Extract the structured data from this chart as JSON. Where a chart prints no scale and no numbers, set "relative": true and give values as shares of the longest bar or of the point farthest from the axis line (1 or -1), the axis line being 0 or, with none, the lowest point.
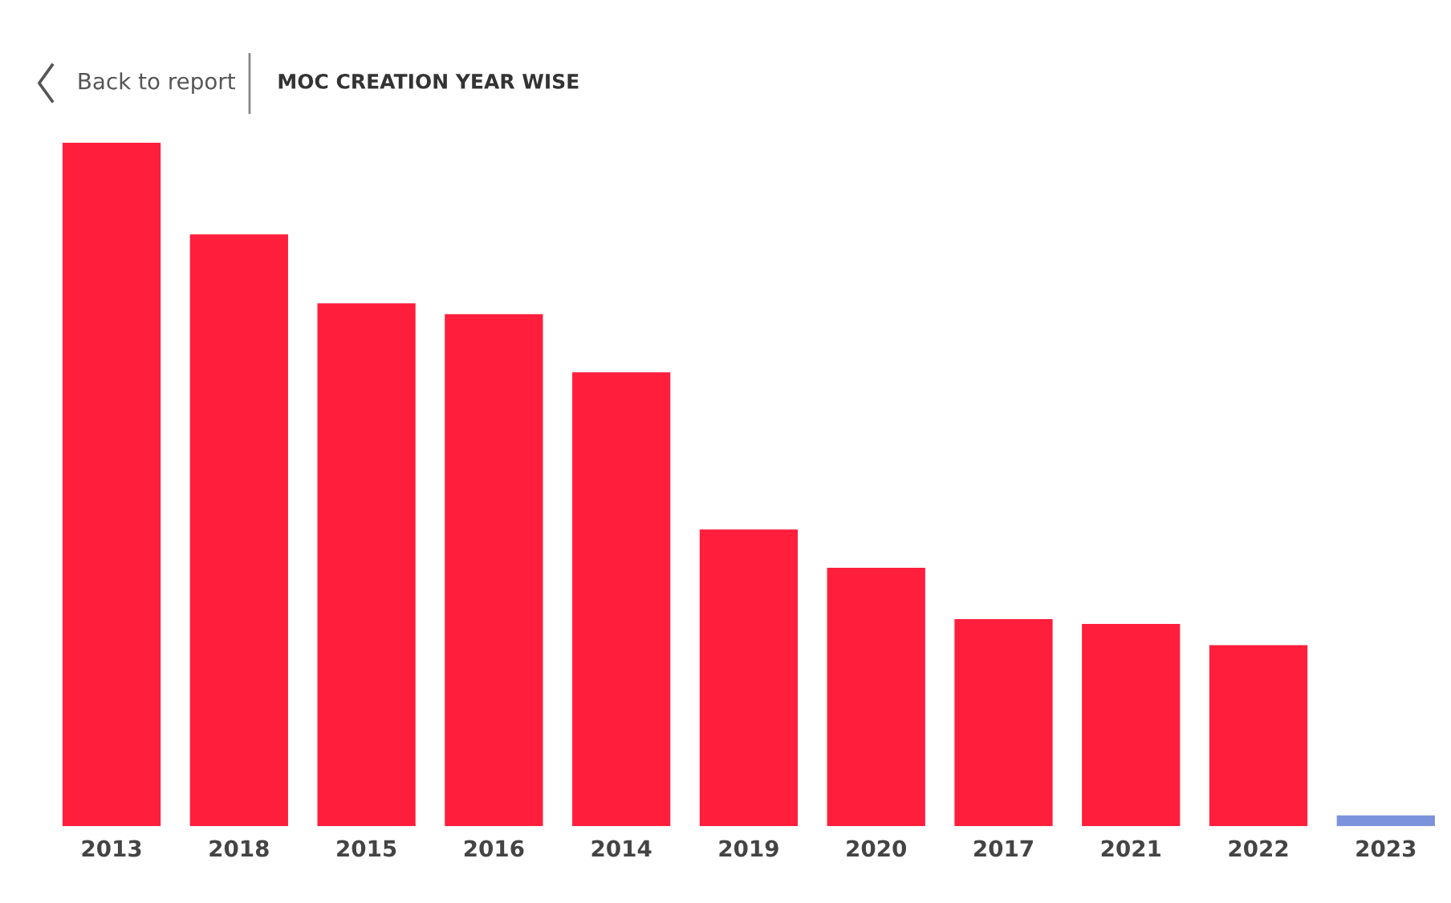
{
  "chart_data": {
    "type": "bar",
    "title": "MOC CREATION YEAR WISE",
    "relative": true,
    "annotations": [
      "Back to report"
    ],
    "categories": [
      "2013",
      "2018",
      "2015",
      "2016",
      "2014",
      "2019",
      "2020",
      "2017",
      "2021",
      "2022",
      "2023"
    ],
    "values": [
      1,
      0.866,
      0.765,
      0.749,
      0.664,
      0.434,
      0.378,
      0.303,
      0.296,
      0.265,
      0.016
    ],
    "colors": [
      "#ff1e3c",
      "#ff1e3c",
      "#ff1e3c",
      "#ff1e3c",
      "#ff1e3c",
      "#ff1e3c",
      "#ff1e3c",
      "#ff1e3c",
      "#ff1e3c",
      "#ff1e3c",
      "#7b93db"
    ],
    "grid": false,
    "legend": false
  }
}
